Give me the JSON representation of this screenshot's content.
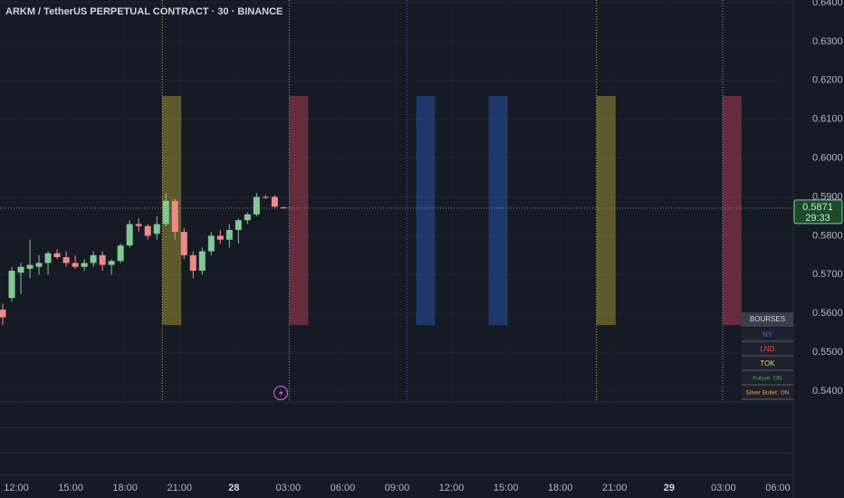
{
  "chart_data": {
    "type": "candlestick",
    "title": "ARKM / TetherUS PERPETUAL CONTRACT · 30 · BINANCE",
    "x": [
      -0.75,
      -0.25,
      0.25,
      0.75,
      1.25,
      1.75,
      2.25,
      2.75,
      3.25,
      3.75,
      4.25,
      4.75,
      5.25,
      5.75,
      6.25,
      6.75,
      7.25,
      7.75,
      8.25,
      8.75,
      9.25,
      9.75,
      10.25,
      10.75,
      11.25,
      11.75,
      12.25,
      12.75,
      13.25,
      13.75,
      14.25,
      14.75
    ],
    "open": [
      0.561,
      0.564,
      0.5705,
      0.5715,
      0.572,
      0.573,
      0.5755,
      0.5745,
      0.573,
      0.572,
      0.573,
      0.575,
      0.5725,
      0.5735,
      0.5775,
      0.583,
      0.5825,
      0.5805,
      0.583,
      0.589,
      0.581,
      0.575,
      0.571,
      0.576,
      0.58,
      0.579,
      0.5815,
      0.584,
      0.5855,
      0.59,
      0.59,
      0.5873
    ],
    "high": [
      0.5625,
      0.572,
      0.573,
      0.579,
      0.575,
      0.576,
      0.5765,
      0.576,
      0.575,
      0.574,
      0.576,
      0.576,
      0.574,
      0.578,
      0.584,
      0.5845,
      0.583,
      0.585,
      0.591,
      0.5895,
      0.582,
      0.576,
      0.577,
      0.581,
      0.5815,
      0.583,
      0.5845,
      0.586,
      0.591,
      0.5905,
      0.5905,
      0.5875
    ],
    "low": [
      0.557,
      0.563,
      0.565,
      0.569,
      0.57,
      0.57,
      0.574,
      0.572,
      0.5715,
      0.571,
      0.572,
      0.571,
      0.57,
      0.573,
      0.577,
      0.581,
      0.579,
      0.579,
      0.5825,
      0.579,
      0.574,
      0.569,
      0.57,
      0.575,
      0.578,
      0.577,
      0.578,
      0.583,
      0.585,
      0.5895,
      0.587,
      0.587
    ],
    "close": [
      0.559,
      0.571,
      0.572,
      0.5725,
      0.573,
      0.5755,
      0.5745,
      0.573,
      0.572,
      0.573,
      0.575,
      0.5725,
      0.5735,
      0.5775,
      0.583,
      0.5825,
      0.58,
      0.583,
      0.589,
      0.581,
      0.575,
      0.571,
      0.576,
      0.58,
      0.579,
      0.5815,
      0.584,
      0.5855,
      0.59,
      0.5898,
      0.5875,
      0.5871
    ],
    "up_color": "#81c995",
    "down_color": "#f08a8a",
    "xlim": [
      -0.9,
      42.85
    ],
    "xticks": [
      {
        "value": 0,
        "label": "12:00"
      },
      {
        "value": 3,
        "label": "15:00"
      },
      {
        "value": 6,
        "label": "18:00"
      },
      {
        "value": 9,
        "label": "21:00"
      },
      {
        "value": 12,
        "label": "28"
      },
      {
        "value": 15,
        "label": "03:00"
      },
      {
        "value": 18,
        "label": "06:00"
      },
      {
        "value": 21,
        "label": "09:00"
      },
      {
        "value": 24,
        "label": "12:00"
      },
      {
        "value": 27,
        "label": "15:00"
      },
      {
        "value": 30,
        "label": "18:00"
      },
      {
        "value": 33,
        "label": "21:00"
      },
      {
        "value": 36,
        "label": "29"
      },
      {
        "value": 39,
        "label": "03:00"
      },
      {
        "value": 42,
        "label": "06:00"
      }
    ],
    "ylim": [
      0.5372,
      0.6407
    ],
    "yticks": [
      {
        "value": 0.64,
        "label": "0.6400"
      },
      {
        "value": 0.63,
        "label": "0.6300"
      },
      {
        "value": 0.62,
        "label": "0.6200"
      },
      {
        "value": 0.61,
        "label": "0.6100"
      },
      {
        "value": 0.6,
        "label": "0.6000"
      },
      {
        "value": 0.59,
        "label": "0.5900"
      },
      {
        "value": 0.58,
        "label": "0.5800"
      },
      {
        "value": 0.57,
        "label": "0.5700"
      },
      {
        "value": 0.56,
        "label": "0.5600"
      },
      {
        "value": 0.55,
        "label": "0.5500"
      },
      {
        "value": 0.54,
        "label": "0.5400"
      }
    ],
    "grid": true,
    "last_price": {
      "value": 0.5871,
      "countdown": "29:33",
      "color": "#81c995"
    },
    "sessions": [
      {
        "x": [
          8.05,
          9.1
        ],
        "y": [
          0.557,
          0.616
        ],
        "color": "#c9b83a"
      },
      {
        "x": [
          15.05,
          16.1
        ],
        "y": [
          0.557,
          0.616
        ],
        "color": "#d9485f"
      },
      {
        "x": [
          22.05,
          23.1
        ],
        "y": [
          0.557,
          0.616
        ],
        "color": "#2f63d6"
      },
      {
        "x": [
          26.05,
          27.1
        ],
        "y": [
          0.557,
          0.616
        ],
        "color": "#2f63d6"
      },
      {
        "x": [
          32,
          33.05
        ],
        "y": [
          0.557,
          0.616
        ],
        "color": "#c9b83a"
      },
      {
        "x": [
          38.95,
          40
        ],
        "y": [
          0.557,
          0.616
        ],
        "color": "#d9485f"
      }
    ],
    "session_lines": [
      {
        "x": 8.05,
        "color": "#c9b83a"
      },
      {
        "x": 15.05,
        "color": "#8a8f9c"
      },
      {
        "x": 21.55,
        "color": "#2f63d6"
      },
      {
        "x": 32,
        "color": "#c9b83a"
      },
      {
        "x": 38.95,
        "color": "#8a8f9c"
      }
    ],
    "session_table": {
      "title": "BOURSES",
      "rows": [
        {
          "label": "NY",
          "color": "#3f6fe0"
        },
        {
          "label": "LND",
          "color": "#e0465a"
        },
        {
          "label": "TOK",
          "color": "#e6d15a"
        },
        {
          "label": "Future: ON",
          "color": "#4caf50"
        },
        {
          "label": "Silver Bullet: ON",
          "color": "#f0a040"
        }
      ]
    }
  }
}
